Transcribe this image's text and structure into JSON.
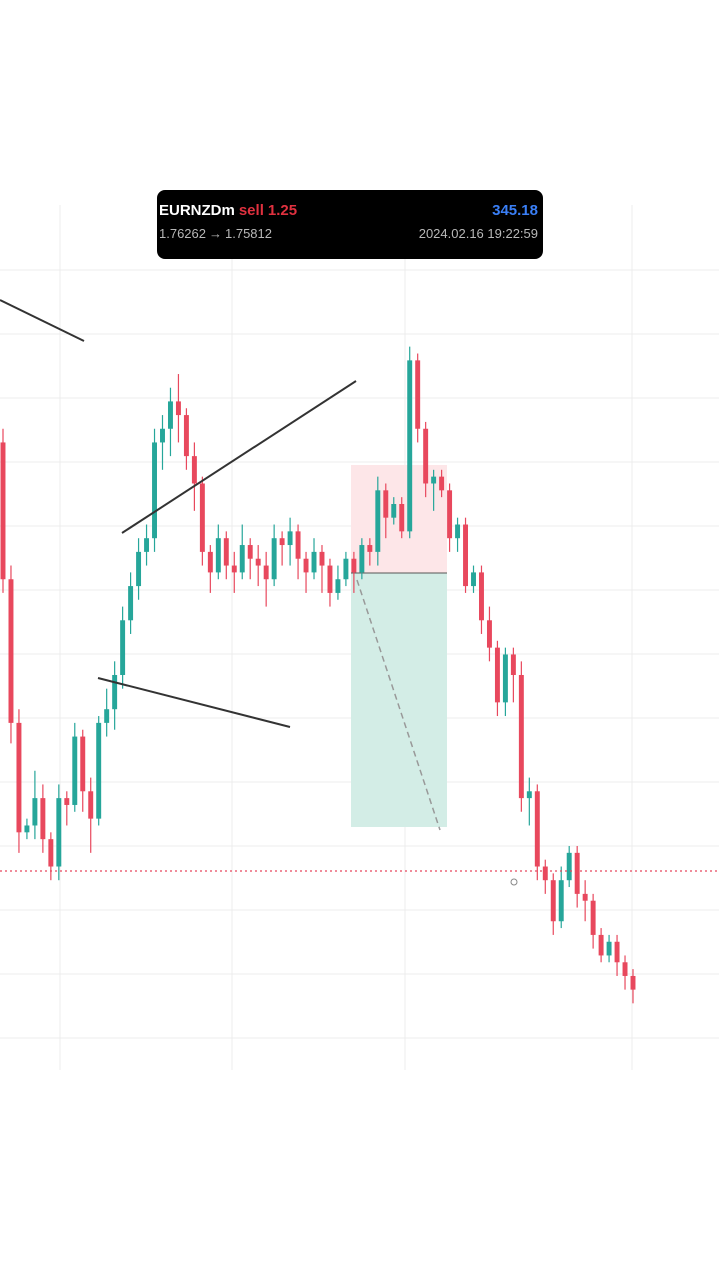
{
  "trade": {
    "symbol": "EURNZDm",
    "side": "sell",
    "lots": "1.25",
    "profit": "345.18",
    "open_price": "1.76262",
    "arrow": "→",
    "close_price": "1.75812",
    "timestamp": "2024.02.16 19:22:59"
  },
  "colors": {
    "bull": "#26a69a",
    "bear": "#e8485d",
    "stop_zone": "#fde6e8",
    "target_zone": "#d3ede6",
    "current_price_line": "#e8485d",
    "trendline": "#333333",
    "grid": "#ececec",
    "card_bg": "#000000",
    "profit_text": "#3a7ff6"
  },
  "chart_data": {
    "type": "candlestick",
    "symbol": "EURNZDm",
    "note_axes": "no price or time axis labels are printed",
    "grid": true,
    "candles_ohlc_relative": [
      [
        420,
        430,
        310,
        320
      ],
      [
        320,
        330,
        200,
        215
      ],
      [
        215,
        225,
        120,
        135
      ],
      [
        135,
        145,
        130,
        140
      ],
      [
        140,
        180,
        130,
        160
      ],
      [
        160,
        170,
        120,
        130
      ],
      [
        130,
        135,
        100,
        110
      ],
      [
        110,
        170,
        100,
        160
      ],
      [
        160,
        165,
        140,
        155
      ],
      [
        155,
        215,
        150,
        205
      ],
      [
        205,
        210,
        150,
        165
      ],
      [
        165,
        175,
        120,
        145
      ],
      [
        145,
        220,
        140,
        215
      ],
      [
        215,
        240,
        205,
        225
      ],
      [
        225,
        260,
        210,
        250
      ],
      [
        250,
        300,
        240,
        290
      ],
      [
        290,
        325,
        280,
        315
      ],
      [
        315,
        350,
        305,
        340
      ],
      [
        340,
        360,
        330,
        350
      ],
      [
        350,
        430,
        340,
        420
      ],
      [
        420,
        440,
        400,
        430
      ],
      [
        430,
        460,
        410,
        450
      ],
      [
        450,
        470,
        420,
        440
      ],
      [
        440,
        445,
        400,
        410
      ],
      [
        410,
        420,
        370,
        390
      ],
      [
        390,
        395,
        330,
        340
      ],
      [
        340,
        345,
        310,
        325
      ],
      [
        325,
        360,
        320,
        350
      ],
      [
        350,
        355,
        320,
        330
      ],
      [
        330,
        340,
        310,
        325
      ],
      [
        325,
        360,
        320,
        345
      ],
      [
        345,
        350,
        320,
        335
      ],
      [
        335,
        345,
        315,
        330
      ],
      [
        330,
        340,
        300,
        320
      ],
      [
        320,
        360,
        315,
        350
      ],
      [
        350,
        355,
        330,
        345
      ],
      [
        345,
        365,
        330,
        355
      ],
      [
        355,
        360,
        320,
        335
      ],
      [
        335,
        340,
        310,
        325
      ],
      [
        325,
        350,
        320,
        340
      ],
      [
        340,
        345,
        310,
        330
      ],
      [
        330,
        335,
        300,
        310
      ],
      [
        310,
        330,
        305,
        320
      ],
      [
        320,
        340,
        315,
        335
      ],
      [
        335,
        340,
        310,
        325
      ],
      [
        325,
        350,
        320,
        345
      ],
      [
        345,
        350,
        330,
        340
      ],
      [
        340,
        395,
        330,
        385
      ],
      [
        385,
        390,
        350,
        365
      ],
      [
        365,
        380,
        360,
        375
      ],
      [
        375,
        380,
        350,
        355
      ],
      [
        355,
        490,
        350,
        480
      ],
      [
        480,
        485,
        420,
        430
      ],
      [
        430,
        435,
        380,
        390
      ],
      [
        390,
        400,
        370,
        395
      ],
      [
        395,
        400,
        380,
        385
      ],
      [
        385,
        390,
        340,
        350
      ],
      [
        350,
        365,
        340,
        360
      ],
      [
        360,
        365,
        310,
        315
      ],
      [
        315,
        330,
        310,
        325
      ],
      [
        325,
        330,
        280,
        290
      ],
      [
        290,
        300,
        260,
        270
      ],
      [
        270,
        275,
        220,
        230
      ],
      [
        230,
        270,
        220,
        265
      ],
      [
        265,
        270,
        230,
        250
      ],
      [
        250,
        260,
        150,
        160
      ],
      [
        160,
        175,
        140,
        165
      ],
      [
        165,
        170,
        100,
        110
      ],
      [
        110,
        115,
        90,
        100
      ],
      [
        100,
        105,
        60,
        70
      ],
      [
        70,
        110,
        65,
        100
      ],
      [
        100,
        125,
        95,
        120
      ],
      [
        120,
        125,
        80,
        90
      ],
      [
        90,
        100,
        70,
        85
      ],
      [
        85,
        90,
        50,
        60
      ],
      [
        60,
        65,
        40,
        45
      ],
      [
        45,
        60,
        40,
        55
      ],
      [
        55,
        60,
        30,
        40
      ],
      [
        40,
        45,
        20,
        30
      ],
      [
        30,
        35,
        10,
        20
      ]
    ]
  }
}
